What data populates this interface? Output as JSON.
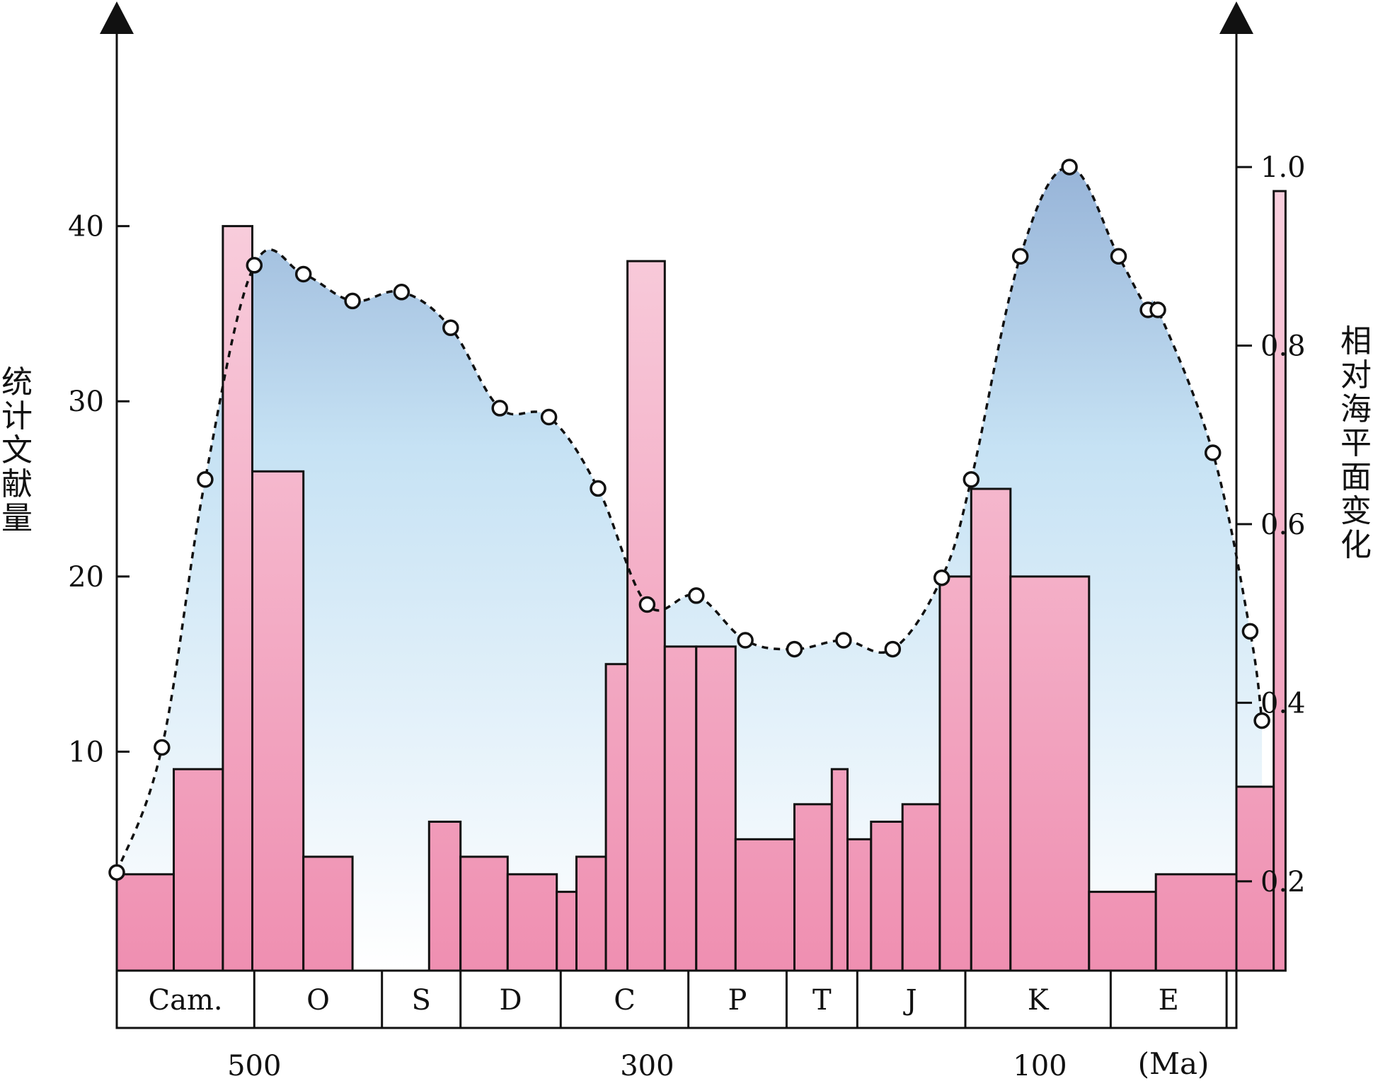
{
  "chart_data": {
    "type": "bar",
    "x_axis": {
      "label": "(Ma)",
      "reversed": true,
      "range": [
        570,
        0
      ],
      "ticks": [
        500,
        300,
        100
      ],
      "tick_labels": [
        "500",
        "300",
        "100"
      ]
    },
    "y_left": {
      "title": "统计文献量",
      "range": [
        -2.5,
        50
      ],
      "ticks": [
        10,
        20,
        30,
        40
      ],
      "tick_labels": [
        "10",
        "20",
        "30",
        "40"
      ]
    },
    "y_right": {
      "title": "相对海平面变化",
      "range": [
        0.1,
        1.13
      ],
      "ticks": [
        0.2,
        0.4,
        0.6,
        0.8,
        1.0
      ],
      "tick_labels": [
        "0.2",
        "0.4",
        "0.6",
        "0.8",
        "1.0"
      ]
    },
    "periods": [
      {
        "label": "Cam.",
        "start": 570,
        "end": 500
      },
      {
        "label": "O",
        "start": 500,
        "end": 435
      },
      {
        "label": "S",
        "start": 435,
        "end": 395
      },
      {
        "label": "D",
        "start": 395,
        "end": 344
      },
      {
        "label": "C",
        "start": 344,
        "end": 279
      },
      {
        "label": "P",
        "start": 279,
        "end": 229
      },
      {
        "label": "T",
        "start": 229,
        "end": 193
      },
      {
        "label": "J",
        "start": 193,
        "end": 138
      },
      {
        "label": "K",
        "start": 138,
        "end": 64
      },
      {
        "label": "E",
        "start": 64,
        "end": 5
      },
      {
        "label": "",
        "start": 5,
        "end": 0
      }
    ],
    "bars": [
      {
        "start": 570,
        "end": 541,
        "value": 3
      },
      {
        "start": 541,
        "end": 516,
        "value": 9
      },
      {
        "start": 516,
        "end": 501,
        "value": 40
      },
      {
        "start": 501,
        "end": 475,
        "value": 26
      },
      {
        "start": 475,
        "end": 450,
        "value": 4
      },
      {
        "start": 411,
        "end": 395,
        "value": 6
      },
      {
        "start": 395,
        "end": 371,
        "value": 4
      },
      {
        "start": 371,
        "end": 346,
        "value": 3
      },
      {
        "start": 346,
        "end": 336,
        "value": 2
      },
      {
        "start": 336,
        "end": 321,
        "value": 4
      },
      {
        "start": 321,
        "end": 310,
        "value": 15
      },
      {
        "start": 310,
        "end": 291,
        "value": 38
      },
      {
        "start": 291,
        "end": 275,
        "value": 16
      },
      {
        "start": 275,
        "end": 255,
        "value": 16
      },
      {
        "start": 255,
        "end": 225,
        "value": 5
      },
      {
        "start": 225,
        "end": 206,
        "value": 7
      },
      {
        "start": 206,
        "end": 198,
        "value": 9
      },
      {
        "start": 198,
        "end": 186,
        "value": 5
      },
      {
        "start": 186,
        "end": 170,
        "value": 6
      },
      {
        "start": 170,
        "end": 151,
        "value": 7
      },
      {
        "start": 151,
        "end": 135,
        "value": 20
      },
      {
        "start": 135,
        "end": 115,
        "value": 25
      },
      {
        "start": 115,
        "end": 75,
        "value": 20
      },
      {
        "start": 75,
        "end": 41,
        "value": 2
      },
      {
        "start": 41,
        "end": 0,
        "value": 3
      },
      {
        "start": 0,
        "end": -19,
        "value": 8
      },
      {
        "start": -19,
        "end": -25,
        "value": 42
      }
    ],
    "sea_level": {
      "x": [
        570,
        547,
        525,
        500,
        475,
        450,
        425,
        400,
        375,
        350,
        325,
        300,
        275,
        250,
        225,
        200,
        175,
        150,
        135,
        110,
        85,
        60,
        45,
        40,
        12,
        -7,
        -13
      ],
      "y": [
        0.21,
        0.35,
        0.65,
        0.89,
        0.88,
        0.85,
        0.86,
        0.82,
        0.73,
        0.72,
        0.64,
        0.51,
        0.52,
        0.47,
        0.46,
        0.47,
        0.46,
        0.54,
        0.65,
        0.9,
        1.0,
        0.9,
        0.84,
        0.84,
        0.68,
        0.48,
        0.38
      ]
    },
    "colors": {
      "bar_top": "#f9d3e0",
      "bar_bottom": "#ef8fb1",
      "area_top": "#97b4d8",
      "area_bottom": "#ffffff",
      "line": "#111111"
    }
  }
}
